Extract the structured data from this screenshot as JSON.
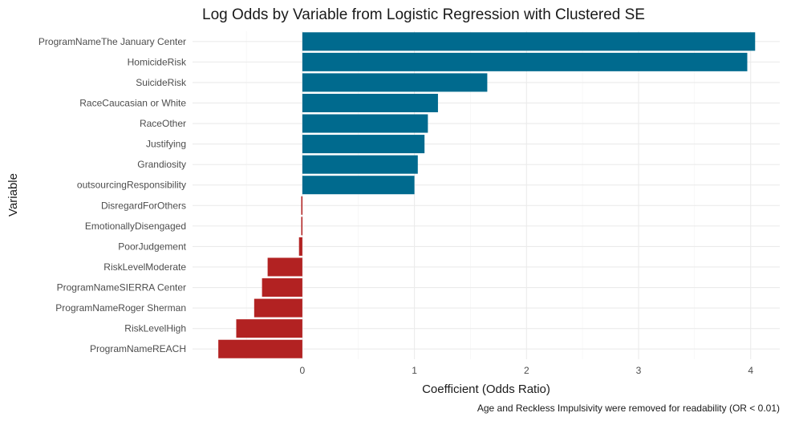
{
  "chart_data": {
    "type": "bar",
    "orientation": "horizontal",
    "title": "Log Odds by Variable from Logistic Regression with Clustered SE",
    "xlabel": "Coefficient (Odds Ratio)",
    "ylabel": "Variable",
    "caption": "Age and Reckless Impulsivity were removed for readability (OR < 0.01)",
    "xlim": [
      -0.98,
      4.26
    ],
    "xticks": [
      0,
      1,
      2,
      3,
      4
    ],
    "grid": true,
    "legend": "none",
    "colors": {
      "positive": "#006a8e",
      "negative": "#b22222"
    },
    "categories": [
      "ProgramNameThe January Center",
      "HomicideRisk",
      "SuicideRisk",
      "RaceCaucasian or White",
      "RaceOther",
      "Justifying",
      "Grandiosity",
      "outsourcingResponsibility",
      "DisregardForOthers",
      "EmotionallyDisengaged",
      "PoorJudgement",
      "RiskLevelModerate",
      "ProgramNameSIERRA Center",
      "ProgramNameRoger Sherman",
      "RiskLevelHigh",
      "ProgramNameREACH"
    ],
    "values": [
      4.04,
      3.97,
      1.65,
      1.21,
      1.12,
      1.09,
      1.03,
      1.0,
      -0.01,
      -0.01,
      -0.03,
      -0.31,
      -0.36,
      -0.43,
      -0.59,
      -0.75
    ]
  }
}
